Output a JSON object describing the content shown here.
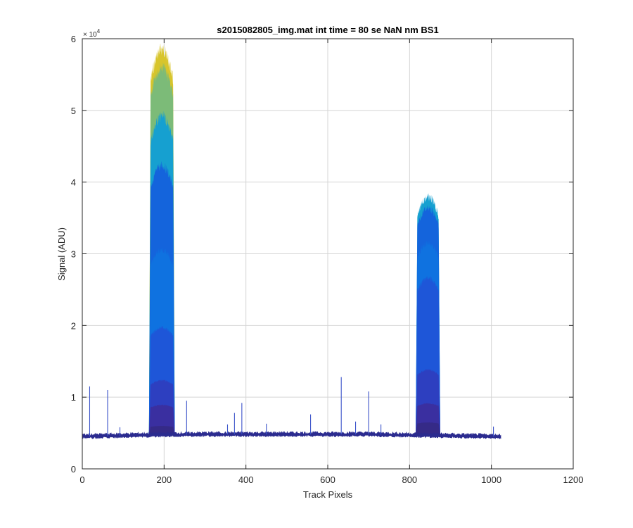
{
  "chart_data": {
    "type": "area",
    "title": "s2015082805_img.mat int time = 80 se  NaN nm BS1",
    "xlabel": "Track Pixels",
    "ylabel": "Signal (ADU)",
    "xlim": [
      0,
      1200
    ],
    "ylim": [
      0,
      60000
    ],
    "x_ticks": [
      0,
      200,
      400,
      600,
      800,
      1000,
      1200
    ],
    "x_tick_labels": [
      "0",
      "200",
      "400",
      "600",
      "800",
      "1000",
      "1200"
    ],
    "y_ticks": [
      0,
      10000,
      20000,
      30000,
      40000,
      50000,
      60000
    ],
    "y_tick_labels": [
      "0",
      "1",
      "2",
      "3",
      "4",
      "5",
      "6"
    ],
    "y_exponent_label": "× 10",
    "y_exponent_power": "4",
    "grid": true,
    "baseline": {
      "x": [
        0,
        150,
        300,
        500,
        700,
        800,
        900,
        1000,
        1023
      ],
      "values": [
        4500,
        4700,
        4800,
        4800,
        4800,
        4700,
        4600,
        4500,
        4500
      ]
    },
    "layers": [
      {
        "peak1": 6000,
        "peak2": 6500,
        "color": "#352a87"
      },
      {
        "peak1": 9000,
        "peak2": 9200,
        "color": "#3a2fa0"
      },
      {
        "peak1": 12500,
        "peak2": 14000,
        "color": "#2d3fc0"
      },
      {
        "peak1": 20000,
        "peak2": 27000,
        "color": "#1e56d8"
      },
      {
        "peak1": 31000,
        "peak2": 32000,
        "color": "#0f72e0"
      },
      {
        "peak1": 43000,
        "peak2": 37000,
        "color": "#1464dc"
      },
      {
        "peak1": 50000,
        "peak2": 38500,
        "color": "#16a0d0"
      },
      {
        "peak1": 57000,
        "peak2": 0,
        "color": "#7cbb78"
      },
      {
        "peak1": 59500,
        "peak2": 0,
        "color": "#d8c52c"
      }
    ],
    "peak1_range": [
      163,
      226
    ],
    "peak2_range": [
      815,
      875
    ],
    "spikes": [
      {
        "x": 18,
        "y": 11500
      },
      {
        "x": 62,
        "y": 11000
      },
      {
        "x": 92,
        "y": 5800
      },
      {
        "x": 255,
        "y": 9500
      },
      {
        "x": 355,
        "y": 6200
      },
      {
        "x": 372,
        "y": 7800
      },
      {
        "x": 390,
        "y": 9200
      },
      {
        "x": 450,
        "y": 6300
      },
      {
        "x": 558,
        "y": 7600
      },
      {
        "x": 633,
        "y": 12800
      },
      {
        "x": 668,
        "y": 6600
      },
      {
        "x": 700,
        "y": 10800
      },
      {
        "x": 730,
        "y": 6200
      },
      {
        "x": 1005,
        "y": 5900
      }
    ]
  },
  "colors": {
    "axis": "#262626",
    "grid": "#d4d4d4",
    "baseline_line": "#2b2b8f"
  }
}
